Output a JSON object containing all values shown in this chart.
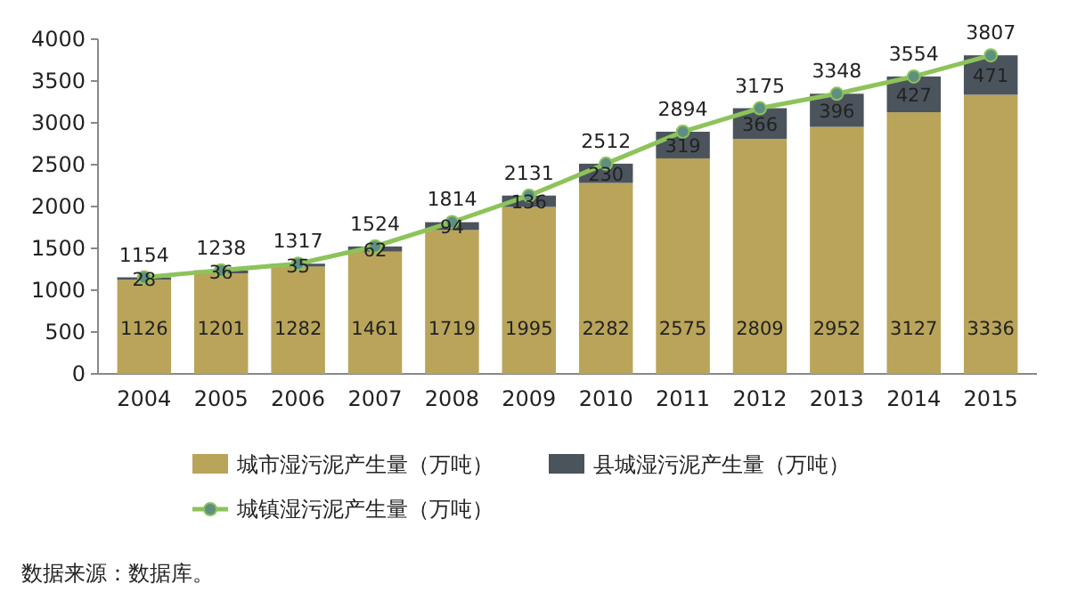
{
  "chart_data": {
    "type": "bar",
    "stacked": true,
    "data_labels": true,
    "legend": "bottom",
    "marker": "circle",
    "categories": [
      "2004",
      "2005",
      "2006",
      "2007",
      "2008",
      "2009",
      "2010",
      "2011",
      "2012",
      "2013",
      "2014",
      "2015"
    ],
    "ylim": [
      0,
      4000
    ],
    "yticks": [
      0,
      500,
      1000,
      1500,
      2000,
      2500,
      3000,
      3500,
      4000
    ],
    "series": [
      {
        "name": "城市湿污泥产生量（万吨）",
        "color": "#b9a45a",
        "values": [
          1126,
          1201,
          1282,
          1461,
          1719,
          1995,
          2282,
          2575,
          2809,
          2952,
          3127,
          3336
        ]
      },
      {
        "name": "县城湿污泥产生量（万吨）",
        "color": "#4b545c",
        "values": [
          28,
          36,
          35,
          62,
          94,
          136,
          230,
          319,
          366,
          396,
          427,
          471
        ]
      },
      {
        "name": "城镇湿污泥产生量（万吨）",
        "type": "line",
        "color": "#8dc35a",
        "values": [
          1154,
          1238,
          1317,
          1524,
          1814,
          2131,
          2512,
          2894,
          3175,
          3348,
          3554,
          3807
        ]
      }
    ],
    "annotations": [
      "数据来源：数据库。"
    ]
  }
}
